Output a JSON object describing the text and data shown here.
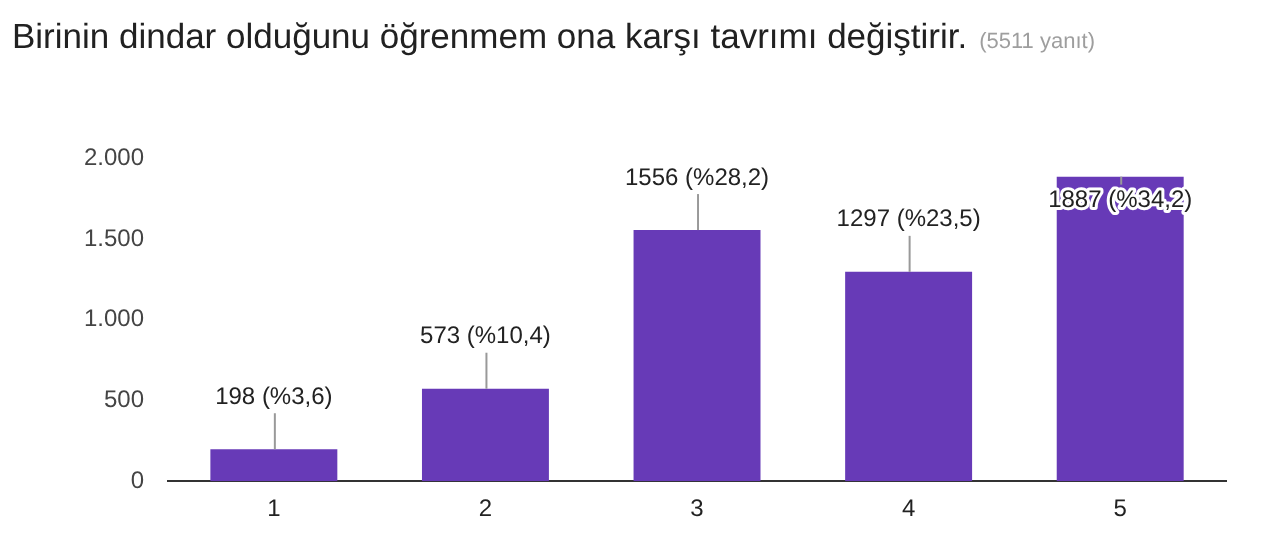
{
  "chart_data": {
    "type": "bar",
    "title": "Birinin dindar olduğunu öğrenmem ona karşı tavrımı değiştirir.",
    "subtitle": "(5511 yanıt)",
    "categories": [
      "1",
      "2",
      "3",
      "4",
      "5"
    ],
    "values": [
      198,
      573,
      1556,
      1297,
      1887
    ],
    "value_labels": [
      "198 (%3,6)",
      "573 (%10,4)",
      "1556 (%28,2)",
      "1297 (%23,5)",
      "1887 (%34,2)"
    ],
    "color": "#673ab7",
    "ylim": [
      0,
      2000
    ],
    "yticks": [
      {
        "value": 0,
        "label": "0"
      },
      {
        "value": 500,
        "label": "500"
      },
      {
        "value": 1000,
        "label": "1.000"
      },
      {
        "value": 1500,
        "label": "1.500"
      },
      {
        "value": 2000,
        "label": "2.000"
      }
    ],
    "grid": false,
    "legend": false
  }
}
